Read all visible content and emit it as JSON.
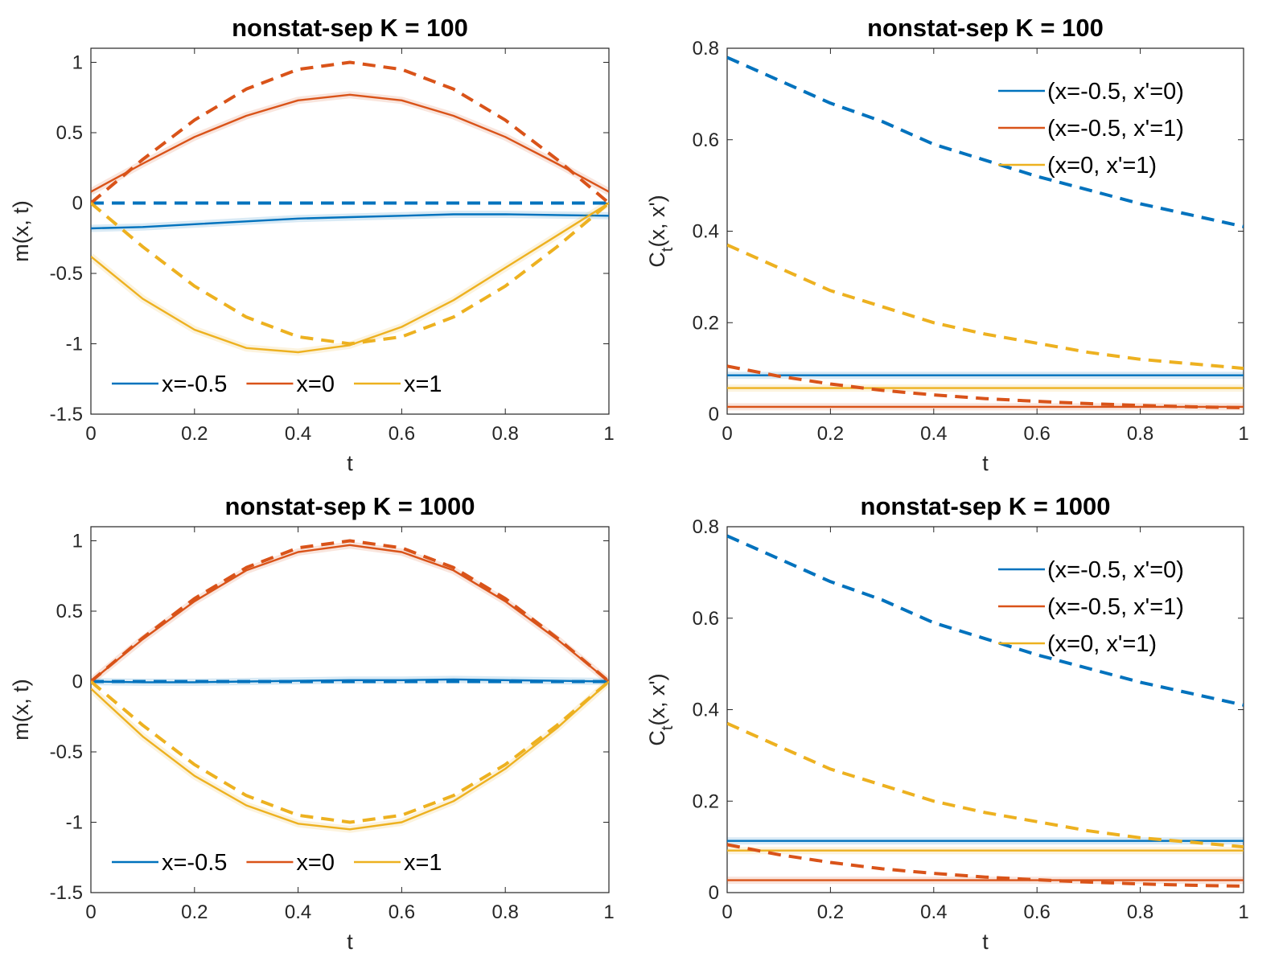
{
  "figure": {
    "colors": {
      "blue": "#0072BD",
      "orange": "#D95319",
      "yellow": "#EDB120",
      "axis": "#262626"
    }
  },
  "chart_data": [
    {
      "type": "line",
      "title": "nonstat-sep    K = 100",
      "xlabel": "t",
      "ylabel": "m(x, t)",
      "xlim": [
        0,
        1
      ],
      "ylim": [
        -1.5,
        1.1
      ],
      "xticks": [
        0,
        0.2,
        0.4,
        0.6,
        0.8,
        1
      ],
      "xtick_labels": [
        "0",
        "0.2",
        "0.4",
        "0.6",
        "0.8",
        "1"
      ],
      "yticks": [
        -1.5,
        -1,
        -0.5,
        0,
        0.5,
        1
      ],
      "ytick_labels": [
        "-1.5",
        "-1",
        "-0.5",
        "0",
        "0.5",
        "1"
      ],
      "legend_position": "bottom-horizontal",
      "series": [
        {
          "name": "x=-0.5",
          "color": "#0072BD",
          "style": "solid",
          "legend": true,
          "x": [
            0,
            0.1,
            0.2,
            0.3,
            0.4,
            0.5,
            0.6,
            0.7,
            0.8,
            0.9,
            1
          ],
          "y": [
            -0.18,
            -0.17,
            -0.15,
            -0.13,
            -0.11,
            -0.1,
            -0.09,
            -0.08,
            -0.08,
            -0.085,
            -0.09
          ]
        },
        {
          "name": "x=0",
          "color": "#D95319",
          "style": "solid",
          "legend": true,
          "x": [
            0,
            0.1,
            0.2,
            0.3,
            0.4,
            0.5,
            0.6,
            0.7,
            0.8,
            0.9,
            1
          ],
          "y": [
            0.08,
            0.28,
            0.47,
            0.62,
            0.73,
            0.77,
            0.73,
            0.62,
            0.47,
            0.28,
            0.08
          ]
        },
        {
          "name": "x=1",
          "color": "#EDB120",
          "style": "solid",
          "legend": true,
          "x": [
            0,
            0.1,
            0.2,
            0.3,
            0.4,
            0.5,
            0.6,
            0.7,
            0.8,
            0.9,
            1
          ],
          "y": [
            -0.38,
            -0.68,
            -0.9,
            -1.03,
            -1.06,
            -1.01,
            -0.88,
            -0.69,
            -0.46,
            -0.23,
            0
          ]
        },
        {
          "name": "x=-0.5 (dashed)",
          "color": "#0072BD",
          "style": "dashed",
          "legend": false,
          "x": [
            0,
            1
          ],
          "y": [
            0,
            0
          ]
        },
        {
          "name": "x=0 (dashed)",
          "color": "#D95319",
          "style": "dashed",
          "legend": false,
          "x": [
            0,
            0.1,
            0.2,
            0.3,
            0.4,
            0.5,
            0.6,
            0.7,
            0.8,
            0.9,
            1
          ],
          "y": [
            0,
            0.31,
            0.59,
            0.81,
            0.95,
            1,
            0.95,
            0.81,
            0.59,
            0.31,
            0
          ]
        },
        {
          "name": "x=1 (dashed)",
          "color": "#EDB120",
          "style": "dashed",
          "legend": false,
          "x": [
            0,
            0.1,
            0.2,
            0.3,
            0.4,
            0.5,
            0.6,
            0.7,
            0.8,
            0.9,
            1
          ],
          "y": [
            0,
            -0.31,
            -0.59,
            -0.81,
            -0.95,
            -1,
            -0.95,
            -0.81,
            -0.59,
            -0.31,
            0
          ]
        }
      ]
    },
    {
      "type": "line",
      "title": "nonstat-sep    K = 100",
      "xlabel": "t",
      "ylabel": "C",
      "ylabel_sub": "t",
      "ylabel_rest": "(x, x')",
      "xlim": [
        0,
        1
      ],
      "ylim": [
        0,
        0.8
      ],
      "xticks": [
        0,
        0.2,
        0.4,
        0.6,
        0.8,
        1
      ],
      "xtick_labels": [
        "0",
        "0.2",
        "0.4",
        "0.6",
        "0.8",
        "1"
      ],
      "yticks": [
        0,
        0.2,
        0.4,
        0.6,
        0.8
      ],
      "ytick_labels": [
        "0",
        "0.2",
        "0.4",
        "0.6",
        "0.8"
      ],
      "legend_position": "top-right",
      "series": [
        {
          "name": "(x=-0.5, x'=0)",
          "color": "#0072BD",
          "style": "solid",
          "legend": true,
          "x": [
            0,
            1
          ],
          "y": [
            0.085,
            0.085
          ]
        },
        {
          "name": "(x=-0.5, x'=1)",
          "color": "#D95319",
          "style": "solid",
          "legend": true,
          "x": [
            0,
            1
          ],
          "y": [
            0.016,
            0.016
          ]
        },
        {
          "name": "(x=0, x'=1)",
          "color": "#EDB120",
          "style": "solid",
          "legend": true,
          "x": [
            0,
            1
          ],
          "y": [
            0.057,
            0.057
          ]
        },
        {
          "name": "(x=-0.5, x'=0) dashed",
          "color": "#0072BD",
          "style": "dashed",
          "legend": false,
          "x": [
            0,
            0.1,
            0.2,
            0.3,
            0.4,
            0.5,
            0.6,
            0.7,
            0.8,
            0.9,
            1
          ],
          "y": [
            0.78,
            0.73,
            0.68,
            0.64,
            0.59,
            0.555,
            0.52,
            0.49,
            0.46,
            0.435,
            0.41
          ]
        },
        {
          "name": "(x=-0.5, x'=1) dashed",
          "color": "#D95319",
          "style": "dashed",
          "legend": false,
          "x": [
            0,
            0.1,
            0.2,
            0.3,
            0.4,
            0.5,
            0.6,
            0.7,
            0.8,
            0.9,
            1
          ],
          "y": [
            0.105,
            0.083,
            0.066,
            0.052,
            0.042,
            0.034,
            0.028,
            0.023,
            0.019,
            0.016,
            0.014
          ]
        },
        {
          "name": "(x=0, x'=1) dashed",
          "color": "#EDB120",
          "style": "dashed",
          "legend": false,
          "x": [
            0,
            0.1,
            0.2,
            0.3,
            0.4,
            0.5,
            0.6,
            0.7,
            0.8,
            0.9,
            1
          ],
          "y": [
            0.37,
            0.32,
            0.27,
            0.235,
            0.2,
            0.175,
            0.155,
            0.135,
            0.12,
            0.11,
            0.1
          ]
        }
      ]
    },
    {
      "type": "line",
      "title": "nonstat-sep    K = 1000",
      "xlabel": "t",
      "ylabel": "m(x, t)",
      "xlim": [
        0,
        1
      ],
      "ylim": [
        -1.5,
        1.1
      ],
      "xticks": [
        0,
        0.2,
        0.4,
        0.6,
        0.8,
        1
      ],
      "xtick_labels": [
        "0",
        "0.2",
        "0.4",
        "0.6",
        "0.8",
        "1"
      ],
      "yticks": [
        -1.5,
        -1,
        -0.5,
        0,
        0.5,
        1
      ],
      "ytick_labels": [
        "-1.5",
        "-1",
        "-0.5",
        "0",
        "0.5",
        "1"
      ],
      "legend_position": "bottom-horizontal",
      "series": [
        {
          "name": "x=-0.5",
          "color": "#0072BD",
          "style": "solid",
          "legend": true,
          "x": [
            0,
            0.1,
            0.2,
            0.3,
            0.4,
            0.5,
            0.6,
            0.7,
            0.8,
            0.9,
            1
          ],
          "y": [
            0,
            -0.005,
            -0.005,
            0,
            0.005,
            0.01,
            0.01,
            0.015,
            0.01,
            0.005,
            0
          ]
        },
        {
          "name": "x=0",
          "color": "#D95319",
          "style": "solid",
          "legend": true,
          "x": [
            0,
            0.1,
            0.2,
            0.3,
            0.4,
            0.5,
            0.6,
            0.7,
            0.8,
            0.9,
            1
          ],
          "y": [
            0,
            0.3,
            0.57,
            0.79,
            0.92,
            0.97,
            0.92,
            0.79,
            0.57,
            0.3,
            0
          ]
        },
        {
          "name": "x=1",
          "color": "#EDB120",
          "style": "solid",
          "legend": true,
          "x": [
            0,
            0.1,
            0.2,
            0.3,
            0.4,
            0.5,
            0.6,
            0.7,
            0.8,
            0.9,
            1
          ],
          "y": [
            -0.05,
            -0.39,
            -0.67,
            -0.88,
            -1.01,
            -1.05,
            -1.0,
            -0.85,
            -0.62,
            -0.33,
            0
          ]
        },
        {
          "name": "x=-0.5 (dashed)",
          "color": "#0072BD",
          "style": "dashed",
          "legend": false,
          "x": [
            0,
            1
          ],
          "y": [
            0,
            0
          ]
        },
        {
          "name": "x=0 (dashed)",
          "color": "#D95319",
          "style": "dashed",
          "legend": false,
          "x": [
            0,
            0.1,
            0.2,
            0.3,
            0.4,
            0.5,
            0.6,
            0.7,
            0.8,
            0.9,
            1
          ],
          "y": [
            0,
            0.31,
            0.59,
            0.81,
            0.95,
            1,
            0.95,
            0.81,
            0.59,
            0.31,
            0
          ]
        },
        {
          "name": "x=1 (dashed)",
          "color": "#EDB120",
          "style": "dashed",
          "legend": false,
          "x": [
            0,
            0.1,
            0.2,
            0.3,
            0.4,
            0.5,
            0.6,
            0.7,
            0.8,
            0.9,
            1
          ],
          "y": [
            0,
            -0.31,
            -0.59,
            -0.81,
            -0.95,
            -1,
            -0.95,
            -0.81,
            -0.59,
            -0.31,
            0
          ]
        }
      ]
    },
    {
      "type": "line",
      "title": "nonstat-sep    K = 1000",
      "xlabel": "t",
      "ylabel": "C",
      "ylabel_sub": "t",
      "ylabel_rest": "(x, x')",
      "xlim": [
        0,
        1
      ],
      "ylim": [
        0,
        0.8
      ],
      "xticks": [
        0,
        0.2,
        0.4,
        0.6,
        0.8,
        1
      ],
      "xtick_labels": [
        "0",
        "0.2",
        "0.4",
        "0.6",
        "0.8",
        "1"
      ],
      "yticks": [
        0,
        0.2,
        0.4,
        0.6,
        0.8
      ],
      "ytick_labels": [
        "0",
        "0.2",
        "0.4",
        "0.6",
        "0.8"
      ],
      "legend_position": "top-right",
      "series": [
        {
          "name": "(x=-0.5, x'=0)",
          "color": "#0072BD",
          "style": "solid",
          "legend": true,
          "x": [
            0,
            1
          ],
          "y": [
            0.113,
            0.113
          ]
        },
        {
          "name": "(x=-0.5, x'=1)",
          "color": "#D95319",
          "style": "solid",
          "legend": true,
          "x": [
            0,
            1
          ],
          "y": [
            0.027,
            0.027
          ]
        },
        {
          "name": "(x=0, x'=1)",
          "color": "#EDB120",
          "style": "solid",
          "legend": true,
          "x": [
            0,
            1
          ],
          "y": [
            0.092,
            0.092
          ]
        },
        {
          "name": "(x=-0.5, x'=0) dashed",
          "color": "#0072BD",
          "style": "dashed",
          "legend": false,
          "x": [
            0,
            0.1,
            0.2,
            0.3,
            0.4,
            0.5,
            0.6,
            0.7,
            0.8,
            0.9,
            1
          ],
          "y": [
            0.78,
            0.73,
            0.68,
            0.64,
            0.59,
            0.555,
            0.52,
            0.49,
            0.46,
            0.435,
            0.41
          ]
        },
        {
          "name": "(x=-0.5, x'=1) dashed",
          "color": "#D95319",
          "style": "dashed",
          "legend": false,
          "x": [
            0,
            0.1,
            0.2,
            0.3,
            0.4,
            0.5,
            0.6,
            0.7,
            0.8,
            0.9,
            1
          ],
          "y": [
            0.105,
            0.083,
            0.066,
            0.052,
            0.042,
            0.034,
            0.028,
            0.023,
            0.019,
            0.016,
            0.014
          ]
        },
        {
          "name": "(x=0, x'=1) dashed",
          "color": "#EDB120",
          "style": "dashed",
          "legend": false,
          "x": [
            0,
            0.1,
            0.2,
            0.3,
            0.4,
            0.5,
            0.6,
            0.7,
            0.8,
            0.9,
            1
          ],
          "y": [
            0.37,
            0.32,
            0.27,
            0.235,
            0.2,
            0.175,
            0.155,
            0.135,
            0.12,
            0.11,
            0.1
          ]
        }
      ]
    }
  ]
}
